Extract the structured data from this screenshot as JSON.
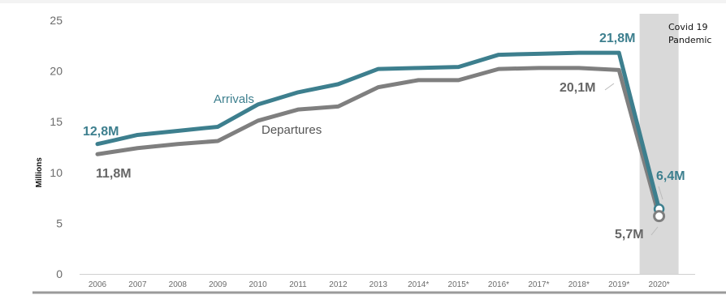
{
  "chart_data": {
    "type": "line",
    "ylabel": "Millions",
    "ylim": [
      0,
      25
    ],
    "y_ticks": [
      "0",
      "5",
      "10",
      "15",
      "20",
      "25"
    ],
    "categories": [
      "2006",
      "2007",
      "2008",
      "2009",
      "2010",
      "2011",
      "2012",
      "2013",
      "2014*",
      "2015*",
      "2016*",
      "2017*",
      "2018*",
      "2019*",
      "2020*"
    ],
    "series": [
      {
        "name": "Arrivals",
        "color": "#3d7f8e",
        "values": [
          12.8,
          13.7,
          14.1,
          14.5,
          16.7,
          17.9,
          18.7,
          20.2,
          20.3,
          20.4,
          21.6,
          21.7,
          21.8,
          21.8,
          6.4
        ]
      },
      {
        "name": "Departures",
        "color": "#7f7f7f",
        "values": [
          11.8,
          12.4,
          12.8,
          13.1,
          15.1,
          16.2,
          16.5,
          18.4,
          19.1,
          19.1,
          20.2,
          20.3,
          20.3,
          20.1,
          5.7
        ]
      }
    ],
    "data_labels": [
      {
        "series": 0,
        "index": 0,
        "text": "12,8M"
      },
      {
        "series": 1,
        "index": 0,
        "text": "11,8M"
      },
      {
        "series": 0,
        "index": 13,
        "text": "21,8M"
      },
      {
        "series": 1,
        "index": 13,
        "text": "20,1M"
      },
      {
        "series": 0,
        "index": 14,
        "text": "6,4M"
      },
      {
        "series": 1,
        "index": 14,
        "text": "5,7M"
      }
    ],
    "highlight": {
      "category": "2020*",
      "label_lines": [
        "Covid 19",
        "Pandemic"
      ]
    },
    "legend": "inline labels on lines",
    "grid": false
  }
}
